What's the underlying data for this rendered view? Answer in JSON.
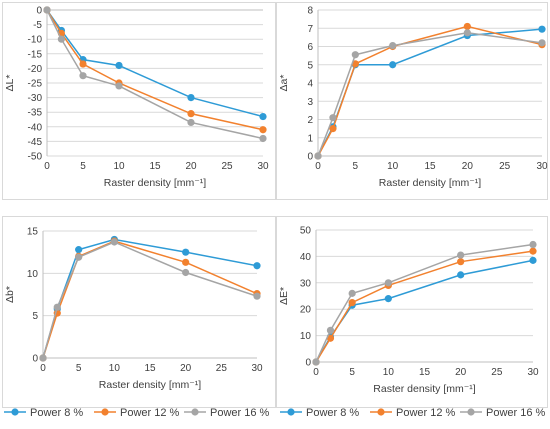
{
  "colors": {
    "Power 8 %": "#2e9bd6",
    "Power 12 %": "#f2812e",
    "Power 16 %": "#a5a5a5",
    "grid": "#d9d9d9",
    "axis": "#bfbfbf",
    "frame": "#d9d9d9"
  },
  "legend": {
    "position": "bottom",
    "groups": [
      [
        "Power 8 %",
        "Power 12 %",
        "Power 16 %"
      ],
      [
        "Power 8 %",
        "Power 12 %",
        "Power 16 %"
      ]
    ]
  },
  "chart_data": [
    {
      "type": "line",
      "xlabel": "Raster density [mm⁻¹]",
      "ylabel": "ΔL*",
      "xlim": [
        0,
        30
      ],
      "xticks": [
        0,
        5,
        10,
        15,
        20,
        25,
        30
      ],
      "ylim": [
        -50,
        0
      ],
      "yticks": [
        0,
        -5,
        -10,
        -15,
        -20,
        -25,
        -30,
        -35,
        -40,
        -45,
        -50
      ],
      "grid": "horizontal",
      "x": [
        0,
        2,
        5,
        10,
        20,
        30
      ],
      "series": [
        {
          "name": "Power 8 %",
          "values": [
            0,
            -7,
            -17,
            -19,
            -30,
            -36.5
          ]
        },
        {
          "name": "Power 12 %",
          "values": [
            0,
            -8,
            -18.5,
            -25,
            -35.5,
            -41
          ]
        },
        {
          "name": "Power 16 %",
          "values": [
            0,
            -10,
            -22.5,
            -26,
            -38.5,
            -44
          ]
        }
      ]
    },
    {
      "type": "line",
      "xlabel": "Raster density [mm⁻¹]",
      "ylabel": "Δa*",
      "xlim": [
        0,
        30
      ],
      "xticks": [
        0,
        5,
        10,
        15,
        20,
        25,
        30
      ],
      "ylim": [
        0,
        8
      ],
      "yticks": [
        0,
        1,
        2,
        3,
        4,
        5,
        6,
        7,
        8
      ],
      "grid": "horizontal",
      "x": [
        0,
        2,
        5,
        10,
        20,
        30
      ],
      "series": [
        {
          "name": "Power 8 %",
          "values": [
            0,
            1.6,
            5.0,
            5.0,
            6.6,
            6.95
          ]
        },
        {
          "name": "Power 12 %",
          "values": [
            0,
            1.5,
            5.05,
            6.0,
            7.1,
            6.1
          ]
        },
        {
          "name": "Power 16 %",
          "values": [
            0,
            2.1,
            5.55,
            6.05,
            6.75,
            6.2
          ]
        }
      ]
    },
    {
      "type": "line",
      "xlabel": "Raster density [mm⁻¹]",
      "ylabel": "Δb*",
      "xlim": [
        0,
        30
      ],
      "xticks": [
        0,
        5,
        10,
        15,
        20,
        25,
        30
      ],
      "ylim": [
        0,
        15
      ],
      "yticks": [
        0,
        5,
        10,
        15
      ],
      "grid": "horizontal",
      "x": [
        0,
        2,
        5,
        10,
        20,
        30
      ],
      "series": [
        {
          "name": "Power 8 %",
          "values": [
            0,
            5.8,
            12.8,
            14.0,
            12.5,
            10.9
          ]
        },
        {
          "name": "Power 12 %",
          "values": [
            0,
            5.3,
            12.0,
            13.8,
            11.3,
            7.6
          ]
        },
        {
          "name": "Power 16 %",
          "values": [
            0,
            6.0,
            11.9,
            13.7,
            10.1,
            7.3
          ]
        }
      ]
    },
    {
      "type": "line",
      "xlabel": "Raster density [mm⁻¹]",
      "ylabel": "ΔE*",
      "xlim": [
        0,
        30
      ],
      "xticks": [
        0,
        5,
        10,
        15,
        20,
        25,
        30
      ],
      "ylim": [
        0,
        50
      ],
      "yticks": [
        0,
        10,
        20,
        30,
        40,
        50
      ],
      "grid": "horizontal",
      "x": [
        0,
        2,
        5,
        10,
        20,
        30
      ],
      "series": [
        {
          "name": "Power 8 %",
          "values": [
            0,
            9.5,
            21.5,
            24,
            33,
            38.5
          ]
        },
        {
          "name": "Power 12 %",
          "values": [
            0,
            9,
            22.5,
            29,
            38,
            42
          ]
        },
        {
          "name": "Power 16 %",
          "values": [
            0,
            12,
            26,
            30,
            40.5,
            44.5
          ]
        }
      ]
    }
  ]
}
